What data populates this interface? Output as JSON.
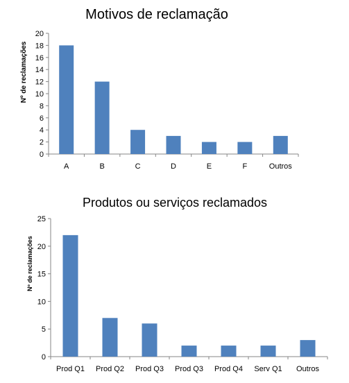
{
  "colors": {
    "bar": "#4f81bd",
    "axis": "#868686"
  },
  "chart_data": [
    {
      "type": "bar",
      "title": "Motivos de reclamação",
      "xlabel": "",
      "ylabel": "Nº de reclamações",
      "categories": [
        "A",
        "B",
        "C",
        "D",
        "E",
        "F",
        "Outros"
      ],
      "values": [
        18,
        12,
        4,
        3,
        2,
        2,
        3
      ],
      "ylim": [
        0,
        20
      ],
      "yticks": [
        0,
        2,
        4,
        6,
        8,
        10,
        12,
        14,
        16,
        18,
        20
      ],
      "grid": false,
      "legend": "none"
    },
    {
      "type": "bar",
      "title": "Produtos ou serviços reclamados",
      "xlabel": "",
      "ylabel": "Nº de reclamações",
      "categories": [
        "Prod Q1",
        "Prod Q2",
        "Prod Q3",
        "Prod Q3",
        "Prod Q4",
        "Serv Q1",
        "Outros"
      ],
      "values": [
        22,
        7,
        6,
        2,
        2,
        2,
        3
      ],
      "ylim": [
        0,
        25
      ],
      "yticks": [
        0,
        5,
        10,
        15,
        20,
        25
      ],
      "grid": false,
      "legend": "none"
    }
  ]
}
